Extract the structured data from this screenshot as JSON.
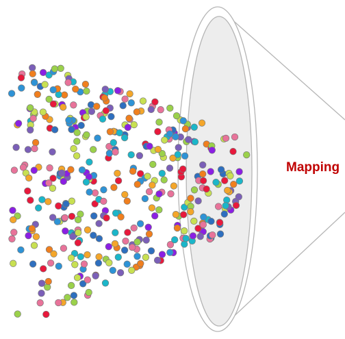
{
  "label": {
    "text": "Mapping",
    "color": "#C00000"
  },
  "funnel": {
    "stroke": "#B5B5B5",
    "inner_fill": "#EDEDED"
  },
  "particles": {
    "count": 430,
    "seed": 20240517,
    "stroke": "#7A7A7A",
    "palette": [
      "#E8193C",
      "#F4A62A",
      "#2E93D6",
      "#8B1FE3",
      "#9BD14B",
      "#E8739A",
      "#7B5FB8",
      "#F07F1E",
      "#2E6FBF",
      "#C8E052",
      "#1BB6C9"
    ]
  }
}
